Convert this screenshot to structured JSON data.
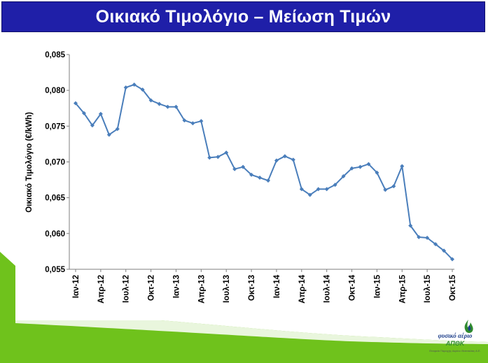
{
  "header": {
    "title": "Οικιακό Τιμολόγιο – Μείωση Τιμών"
  },
  "colors": {
    "title_bg": "#1f1fa8",
    "series": "#4a7ebb",
    "green": "#6fc21c"
  },
  "logo": {
    "name": "φυσικό αέριο",
    "abbr": "ΑΠΘΚ",
    "tagline": "Εταιρεία Παροχής Αερίου Θεσσαλίας Α.Ε."
  },
  "chart_data": {
    "type": "line",
    "title": "",
    "xlabel": "",
    "ylabel": "Οικιακό Τιμολόγιο (€/kWh)",
    "ylim": [
      0.055,
      0.085
    ],
    "grid": false,
    "yticks": [
      "0,055",
      "0,060",
      "0,065",
      "0,070",
      "0,075",
      "0,080",
      "0,085"
    ],
    "xtick_labels": [
      "Ιαν-12",
      "Απρ-12",
      "Ιουλ-12",
      "Οκτ-12",
      "Ιαν-13",
      "Απρ-13",
      "Ιουλ-13",
      "Οκτ-13",
      "Ιαν-14",
      "Απρ-14",
      "Ιουλ-14",
      "Οκτ-14",
      "Ιαν-15",
      "Απρ-15",
      "Ιουλ-15",
      "Οκτ-15"
    ],
    "series": [
      {
        "values": [
          0.0782,
          0.0768,
          0.0751,
          0.0767,
          0.0738,
          0.0746,
          0.0804,
          0.0808,
          0.0801,
          0.0786,
          0.0781,
          0.0777,
          0.0777,
          0.0758,
          0.0754,
          0.0757,
          0.0706,
          0.0707,
          0.0713,
          0.069,
          0.0693,
          0.0682,
          0.0678,
          0.0674,
          0.0702,
          0.0708,
          0.0703,
          0.0662,
          0.0654,
          0.0662,
          0.0662,
          0.0668,
          0.068,
          0.0691,
          0.0693,
          0.0697,
          0.0685,
          0.0661,
          0.0666,
          0.0694,
          0.0611,
          0.0595,
          0.0594,
          0.0585,
          0.0576,
          0.0564
        ]
      }
    ]
  }
}
